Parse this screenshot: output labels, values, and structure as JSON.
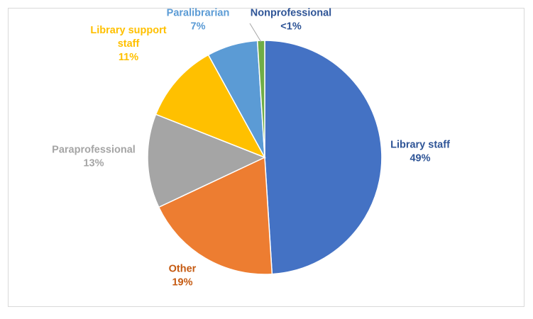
{
  "chart_data": {
    "type": "pie",
    "title": "",
    "start_angle_deg": 0,
    "direction": "clockwise",
    "legend": "none",
    "slices": [
      {
        "name": "Library staff",
        "value": 49,
        "value_label": "49%",
        "color": "#4472C4",
        "label_color": "#2F5597"
      },
      {
        "name": "Other",
        "value": 19,
        "value_label": "19%",
        "color": "#ED7D31",
        "label_color": "#C55A11"
      },
      {
        "name": "Paraprofessional",
        "value": 13,
        "value_label": "13%",
        "color": "#A5A5A5",
        "label_color": "#A5A5A5"
      },
      {
        "name": "Library support staff",
        "name_lines": [
          "Library support",
          "staff"
        ],
        "value": 11,
        "value_label": "11%",
        "color": "#FFC000",
        "label_color": "#FFC000"
      },
      {
        "name": "Paralibrarian",
        "value": 7,
        "value_label": "7%",
        "color": "#5B9BD5",
        "label_color": "#5B9BD5"
      },
      {
        "name": "Nonprofessional",
        "value": 1,
        "value_label": "<1%",
        "color": "#70AD47",
        "label_color": "#2F5597"
      }
    ]
  }
}
